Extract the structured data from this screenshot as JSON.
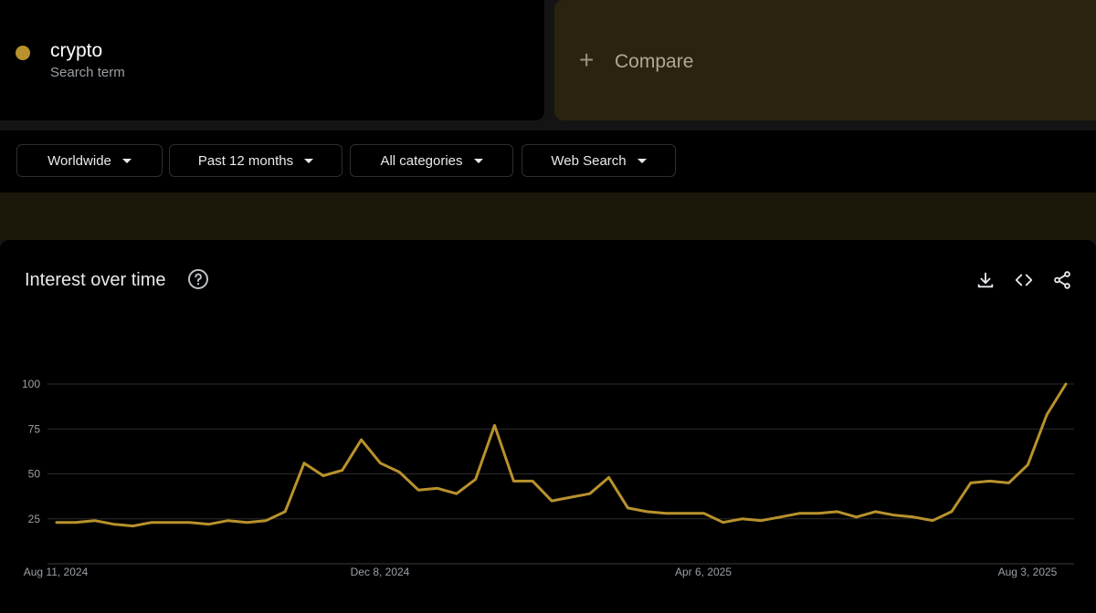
{
  "search_term": {
    "name": "crypto",
    "subtitle": "Search term",
    "color": "#b8922c"
  },
  "compare": {
    "label": "Compare"
  },
  "filters": [
    {
      "label": "Worldwide"
    },
    {
      "label": "Past 12 months"
    },
    {
      "label": "All categories"
    },
    {
      "label": "Web Search"
    }
  ],
  "interest_panel": {
    "title": "Interest over time",
    "icons": [
      "help-icon",
      "download-icon",
      "embed-icon",
      "share-icon"
    ]
  },
  "chart_data": {
    "type": "line",
    "title": "",
    "xlabel": "",
    "ylabel": "",
    "ylim": [
      0,
      100
    ],
    "y_ticks": [
      25,
      50,
      75,
      100
    ],
    "x_tick_labels": [
      "Aug 11, 2024",
      "Dec 8, 2024",
      "Apr 6, 2025",
      "Aug 3, 2025"
    ],
    "grid": true,
    "series": [
      {
        "color": "#b8922c",
        "values": [
          23,
          23,
          24,
          22,
          21,
          23,
          23,
          23,
          22,
          24,
          23,
          24,
          29,
          56,
          49,
          52,
          69,
          56,
          51,
          41,
          42,
          39,
          47,
          77,
          46,
          46,
          35,
          37,
          39,
          48,
          31,
          29,
          28,
          28,
          28,
          23,
          25,
          24,
          26,
          28,
          28,
          29,
          26,
          29,
          27,
          26,
          24,
          29,
          45,
          46,
          45,
          55,
          83,
          100
        ]
      }
    ]
  }
}
